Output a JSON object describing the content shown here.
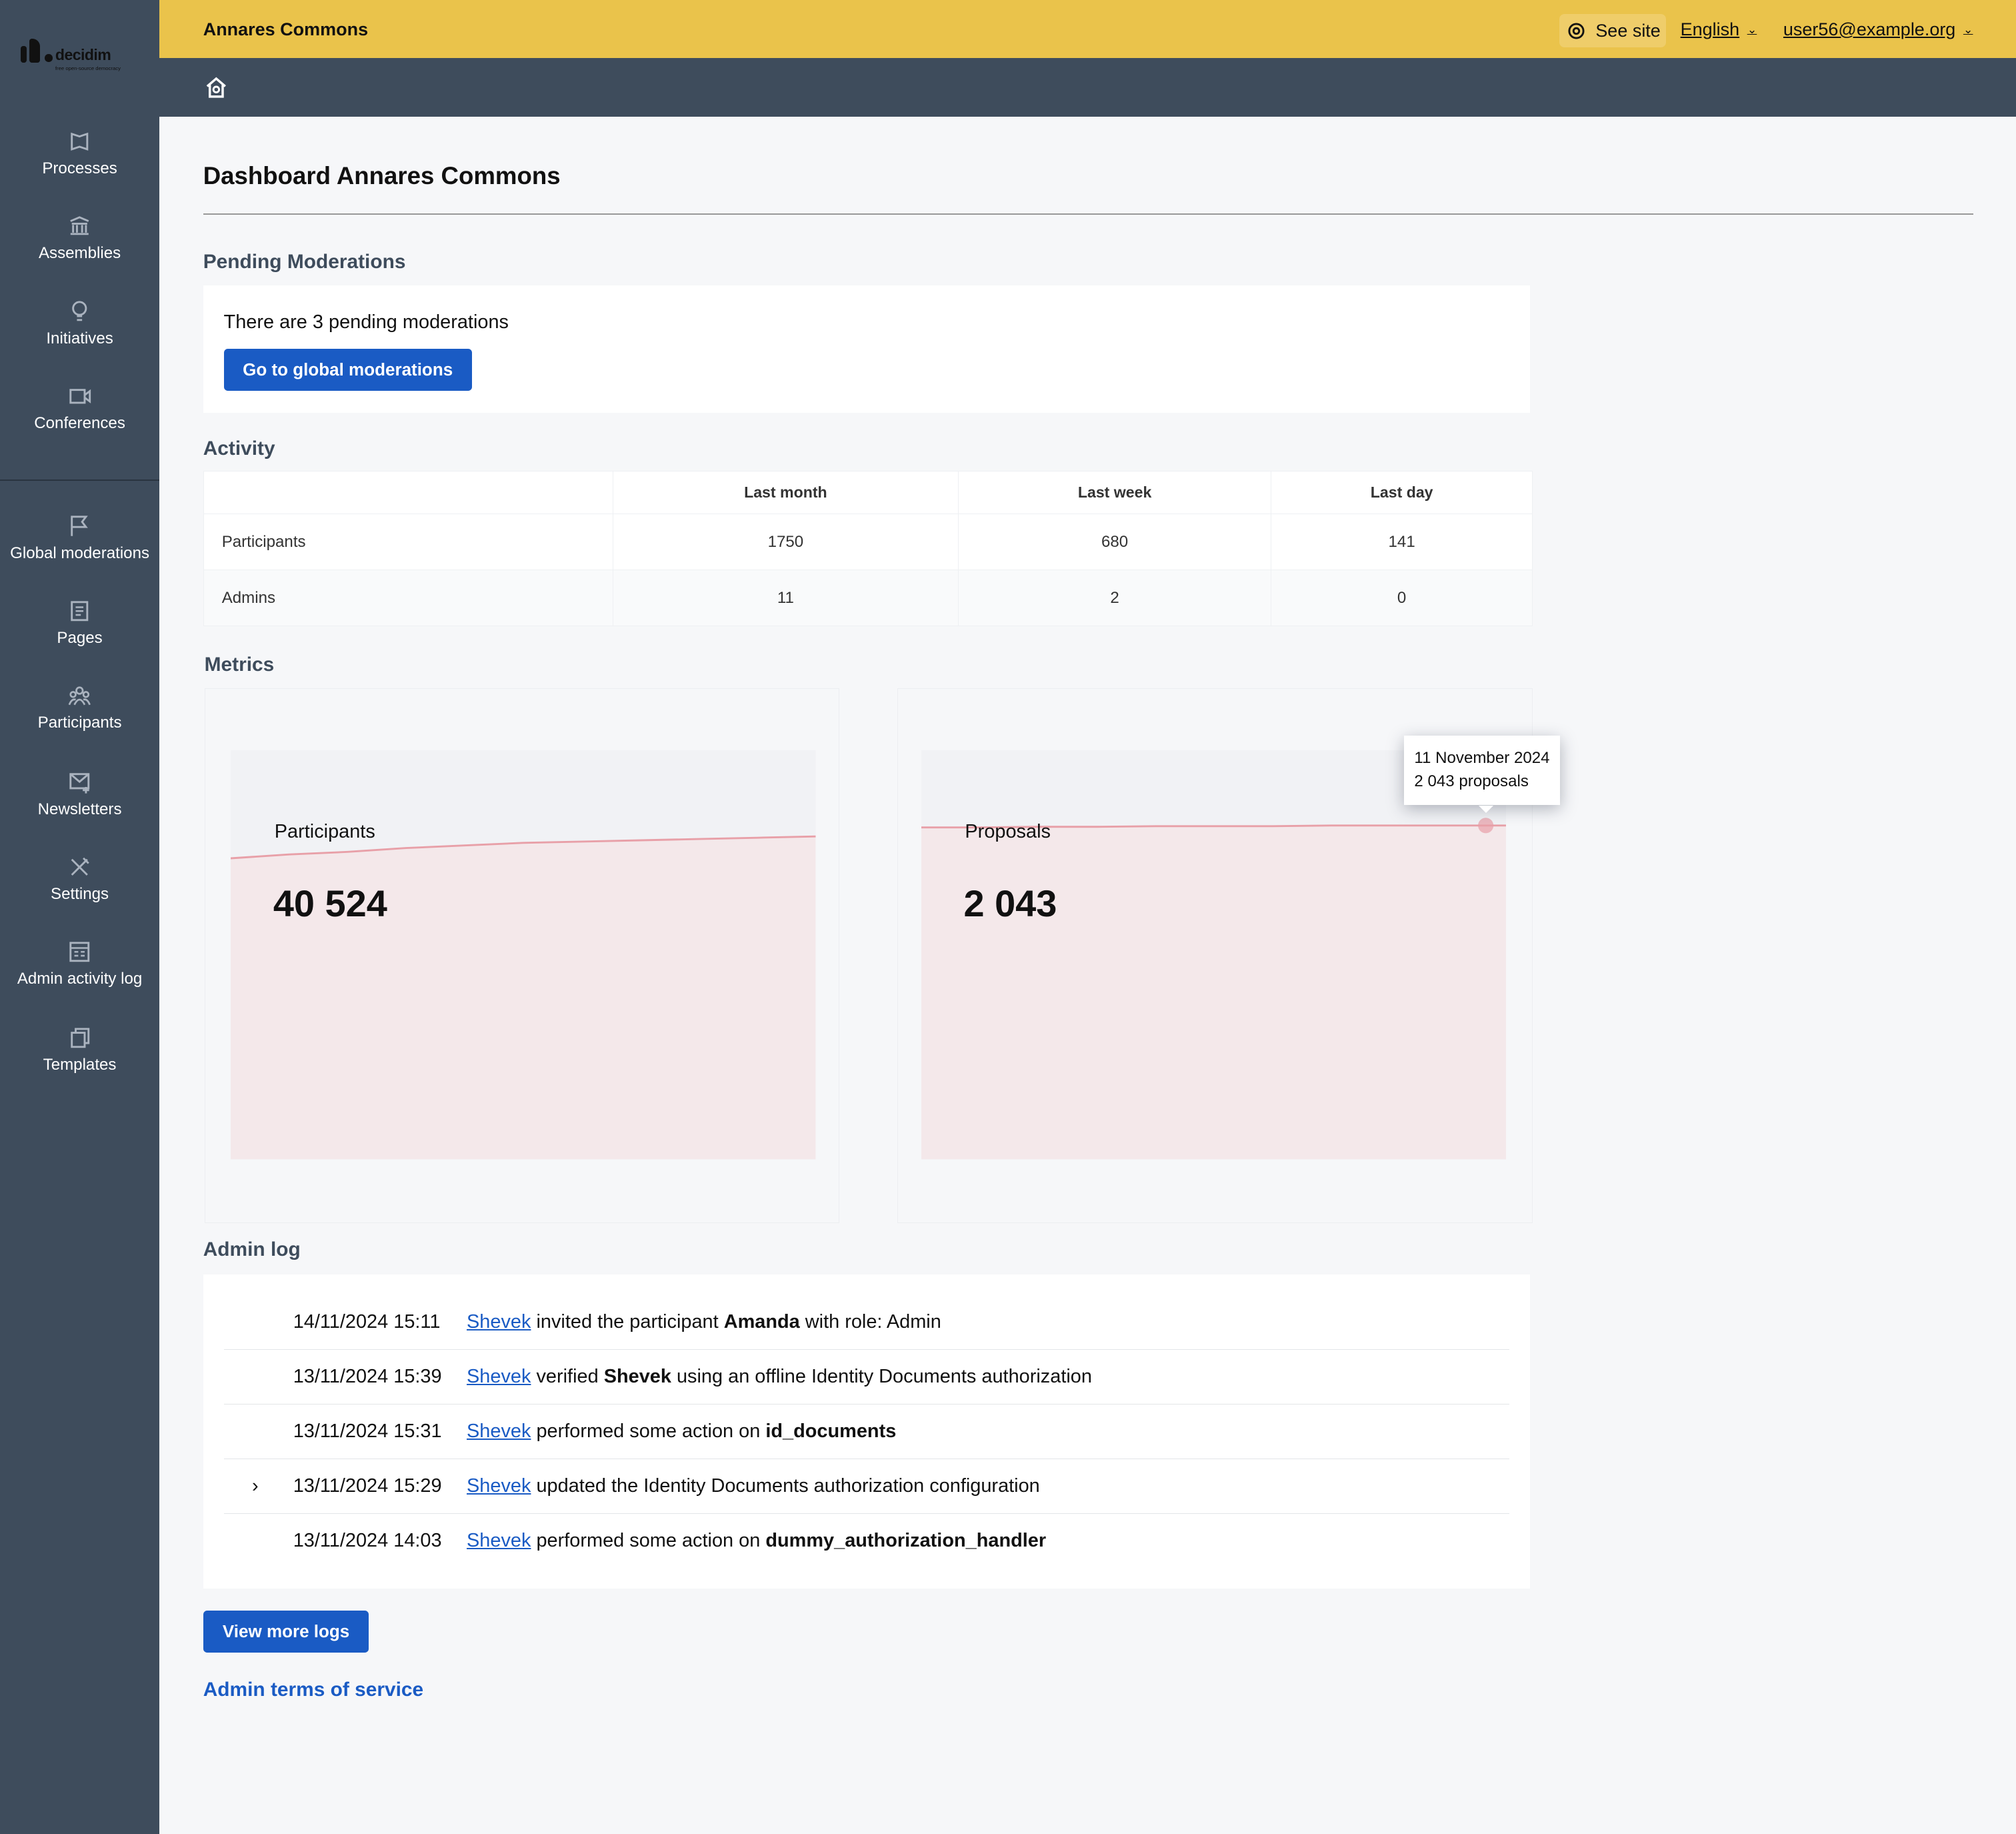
{
  "brand": {
    "logo_text": "decidim",
    "logo_tagline": "free open-source democracy"
  },
  "topbar": {
    "org_name": "Annares Commons",
    "see_site": "See site",
    "language": "English",
    "user": "user56@example.org"
  },
  "sidebar": {
    "items": [
      {
        "label": "Processes",
        "icon": "processes-icon"
      },
      {
        "label": "Assemblies",
        "icon": "assemblies-icon"
      },
      {
        "label": "Initiatives",
        "icon": "lightbulb-icon"
      },
      {
        "label": "Conferences",
        "icon": "video-icon"
      },
      {
        "label": "Global moderations",
        "icon": "flag-icon"
      },
      {
        "label": "Pages",
        "icon": "pages-icon"
      },
      {
        "label": "Participants",
        "icon": "participants-icon"
      },
      {
        "label": "Newsletters",
        "icon": "mail-icon"
      },
      {
        "label": "Settings",
        "icon": "tools-icon"
      },
      {
        "label": "Admin activity log",
        "icon": "log-icon"
      },
      {
        "label": "Templates",
        "icon": "templates-icon"
      }
    ]
  },
  "page": {
    "title": "Dashboard Annares Commons"
  },
  "moderations": {
    "heading": "Pending Moderations",
    "text": "There are 3 pending moderations",
    "button": "Go to global moderations"
  },
  "activity": {
    "heading": "Activity",
    "columns": [
      "",
      "Last month",
      "Last week",
      "Last day"
    ],
    "rows": [
      [
        "Participants",
        "1750",
        "680",
        "141"
      ],
      [
        "Admins",
        "11",
        "2",
        "0"
      ]
    ]
  },
  "metrics": {
    "heading": "Metrics"
  },
  "chart_data": [
    {
      "type": "area",
      "title": "Participants",
      "value": "40 524",
      "color": "#e8a0a8"
    },
    {
      "type": "area",
      "title": "Proposals",
      "value": "2 043",
      "color": "#e8a0a8",
      "tooltip": {
        "date": "11 November 2024",
        "text": "2 043 proposals"
      }
    }
  ],
  "admin_log": {
    "heading": "Admin log",
    "entries": [
      {
        "date": "14/11/2024 15:11",
        "user": "Shevek",
        "pre": " invited the participant ",
        "bold": "Amanda",
        "post": " with role: Admin",
        "expand": false
      },
      {
        "date": "13/11/2024 15:39",
        "user": "Shevek",
        "pre": " verified ",
        "bold": "Shevek",
        "post": " using an offline Identity Documents authorization",
        "expand": false
      },
      {
        "date": "13/11/2024 15:31",
        "user": "Shevek",
        "pre": " performed some action on ",
        "bold": "id_documents",
        "post": "",
        "expand": false
      },
      {
        "date": "13/11/2024 15:29",
        "user": "Shevek",
        "pre": " updated the Identity Documents authorization configuration",
        "bold": "",
        "post": "",
        "expand": true
      },
      {
        "date": "13/11/2024 14:03",
        "user": "Shevek",
        "pre": " performed some action on ",
        "bold": "dummy_authorization_handler",
        "post": "",
        "expand": false
      }
    ],
    "view_more": "View more logs"
  },
  "footer": {
    "terms": "Admin terms of service"
  }
}
